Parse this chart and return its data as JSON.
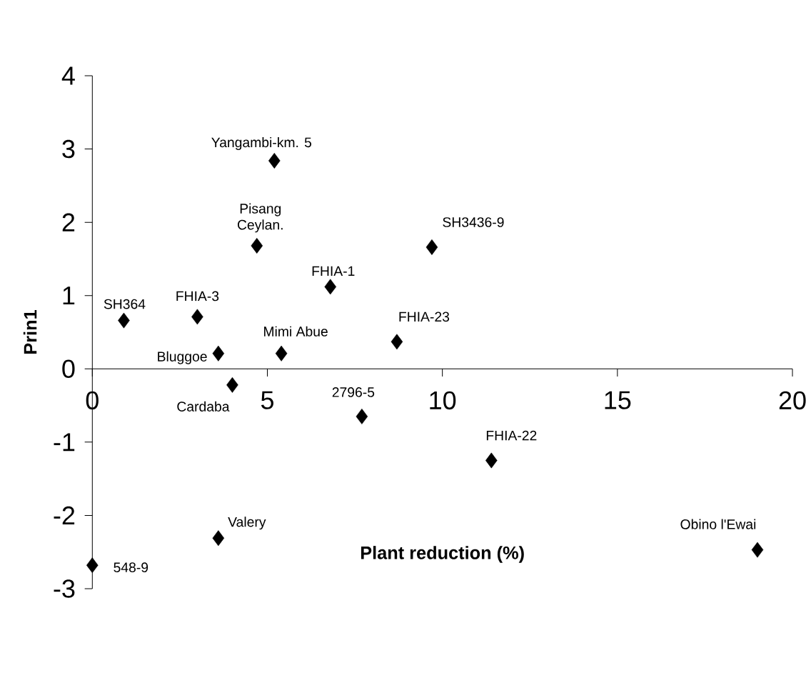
{
  "chart_data": {
    "type": "scatter",
    "xlabel": "Plant reduction (%)",
    "ylabel": "Prin1",
    "x": [
      0.9,
      3.0,
      3.6,
      4.0,
      4.7,
      5.2,
      5.4,
      6.8,
      7.7,
      8.7,
      9.7,
      11.4,
      19.0,
      3.6,
      0.0
    ],
    "values": [
      0.66,
      0.71,
      0.21,
      -0.22,
      1.68,
      2.84,
      0.21,
      1.12,
      -0.65,
      0.37,
      1.66,
      -1.25,
      -2.47,
      -2.31,
      -2.68
    ],
    "color": "#000000",
    "marker": "diamond",
    "xlim": [
      0,
      20
    ],
    "xticks": [
      0,
      5,
      10,
      15,
      20
    ],
    "ylim": [
      -3,
      4
    ],
    "yticks": [
      -3,
      -2,
      -1,
      0,
      1,
      2,
      3,
      4
    ],
    "annotations": [
      {
        "text": "SH364",
        "x": 0.9,
        "y": 0.66
      },
      {
        "text": "FHIA-3",
        "x": 3.0,
        "y": 0.71
      },
      {
        "text": "Bluggoe",
        "x": 3.6,
        "y": 0.21
      },
      {
        "text": "Cardaba",
        "x": 4.0,
        "y": -0.22
      },
      {
        "text": "Pisang Ceylan.",
        "x": 4.7,
        "y": 1.68
      },
      {
        "text": "Yangambi-km. 5",
        "x": 5.2,
        "y": 2.84
      },
      {
        "text": "Mimi Abue",
        "x": 5.4,
        "y": 0.21
      },
      {
        "text": "FHIA-1",
        "x": 6.8,
        "y": 1.12
      },
      {
        "text": "2796-5",
        "x": 7.7,
        "y": -0.65
      },
      {
        "text": "FHIA-23",
        "x": 8.7,
        "y": 0.37
      },
      {
        "text": "SH3436-9",
        "x": 9.7,
        "y": 1.66
      },
      {
        "text": "FHIA-22",
        "x": 11.4,
        "y": -1.25
      },
      {
        "text": "Obino l'Ewai",
        "x": 19.0,
        "y": -2.47
      },
      {
        "text": "Valery",
        "x": 3.6,
        "y": -2.31
      },
      {
        "text": "548-9",
        "x": 0.0,
        "y": -2.68
      }
    ]
  }
}
